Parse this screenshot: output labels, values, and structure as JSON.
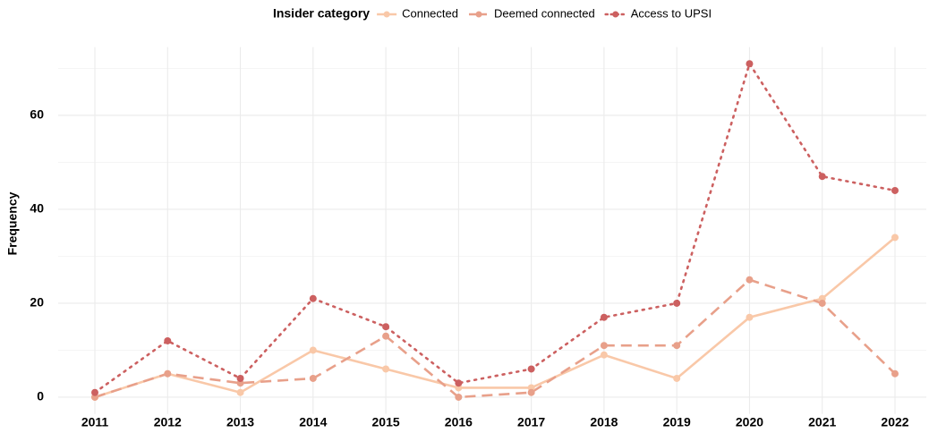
{
  "chart_data": {
    "type": "line",
    "legend_title": "Insider category",
    "legend_position": "top",
    "y_label": "Frequency",
    "categories": [
      "2011",
      "2012",
      "2013",
      "2014",
      "2015",
      "2016",
      "2017",
      "2018",
      "2019",
      "2020",
      "2021",
      "2022"
    ],
    "series": [
      {
        "name": "Connected",
        "color": "#f9c8a8",
        "linetype": "solid",
        "values": [
          0,
          5,
          1,
          10,
          6,
          2,
          2,
          9,
          4,
          17,
          21,
          34
        ]
      },
      {
        "name": "Deemed connected",
        "color": "#e8a08a",
        "linetype": "dashed",
        "values": [
          0,
          5,
          3,
          4,
          13,
          0,
          1,
          11,
          11,
          25,
          20,
          5
        ]
      },
      {
        "name": "Access to UPSI",
        "color": "#cc6060",
        "linetype": "dotted",
        "values": [
          1,
          12,
          4,
          21,
          15,
          3,
          6,
          17,
          20,
          71,
          47,
          44
        ]
      }
    ],
    "ylim": [
      -3.55,
      74.55
    ],
    "yticks": [
      0,
      20,
      40,
      60
    ],
    "minor_yticks": [
      10,
      30,
      50,
      70
    ],
    "grid": true
  }
}
